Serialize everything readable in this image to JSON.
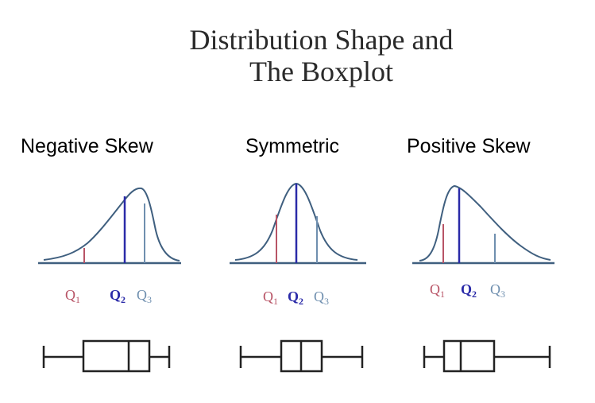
{
  "title": {
    "line1": "Distribution Shape and",
    "line2": "The Boxplot"
  },
  "panels": [
    {
      "label": "Negative Skew",
      "quartiles": {
        "q1": "Q",
        "q1_sub": "1",
        "q2": "Q",
        "q2_sub": "2",
        "q3": "Q",
        "q3_sub": "3"
      }
    },
    {
      "label": "Symmetric",
      "quartiles": {
        "q1": "Q",
        "q1_sub": "1",
        "q2": "Q",
        "q2_sub": "2",
        "q3": "Q",
        "q3_sub": "3"
      }
    },
    {
      "label": "Positive Skew",
      "quartiles": {
        "q1": "Q",
        "q1_sub": "1",
        "q2": "Q",
        "q2_sub": "2",
        "q3": "Q",
        "q3_sub": "3"
      }
    }
  ],
  "colors": {
    "curve": "#3f5f7f",
    "axis": "#3f5f7f",
    "q1": "#b85466",
    "q2": "#2a2aa8",
    "q3": "#6f8faf",
    "box": "#222222"
  }
}
